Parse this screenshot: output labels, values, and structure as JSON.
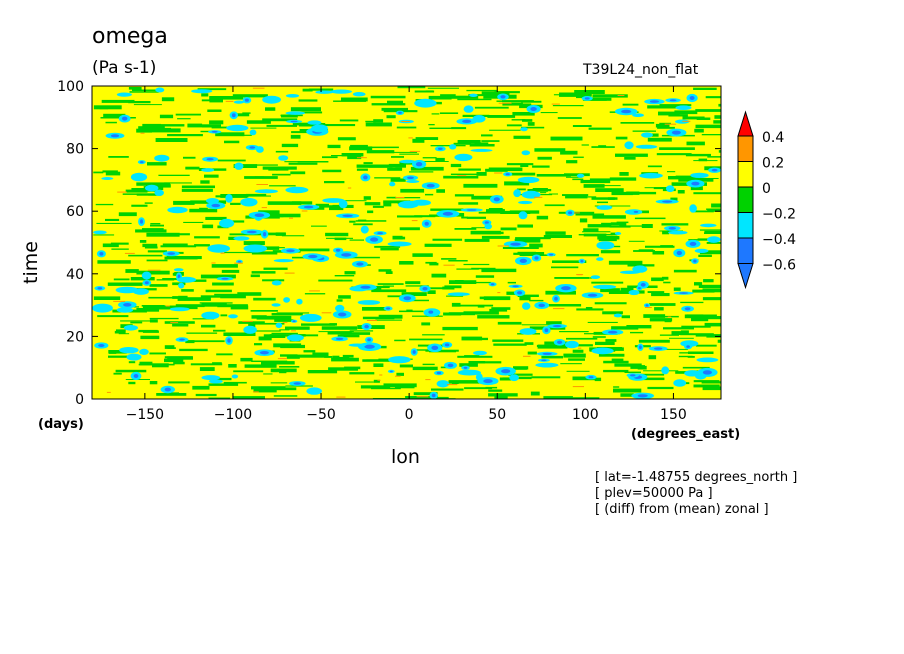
{
  "header": {
    "title": "omega",
    "units": "(Pa s-1)",
    "experiment": "T39L24_non_flat"
  },
  "footnotes": [
    "[ lat=-1.48755 degrees_north ]",
    "[ plev=50000 Pa ]",
    "[ (diff) from (mean) zonal ]"
  ],
  "chart_data": {
    "type": "heatmap",
    "xlabel": "lon",
    "xunits": "(degrees_east)",
    "ylabel": "time",
    "yunits": "(days)",
    "xlim": [
      -180,
      177
    ],
    "ylim": [
      0,
      100
    ],
    "xticks": [
      -150,
      -100,
      -50,
      0,
      50,
      100,
      150
    ],
    "yticks": [
      0,
      20,
      40,
      60,
      80,
      100
    ],
    "grid": false,
    "colorbar": {
      "position": "right",
      "levels": [
        -0.6,
        -0.4,
        -0.2,
        0,
        0.2,
        0.4
      ],
      "tick_labels": [
        "0.4",
        "0.2",
        "0",
        "-0.2",
        "-0.4",
        "-0.6"
      ],
      "colors": [
        "#1e78ff",
        "#1e78ff",
        "#00e6ff",
        "#00d200",
        "#ffff00",
        "#ff9600",
        "#ff0000"
      ]
    },
    "dominant_value_range": [
      0,
      0.2
    ],
    "description_of_pattern": "noisy westward-tilted filaments; mostly 0 to 0.2 with scattered negative patches"
  }
}
